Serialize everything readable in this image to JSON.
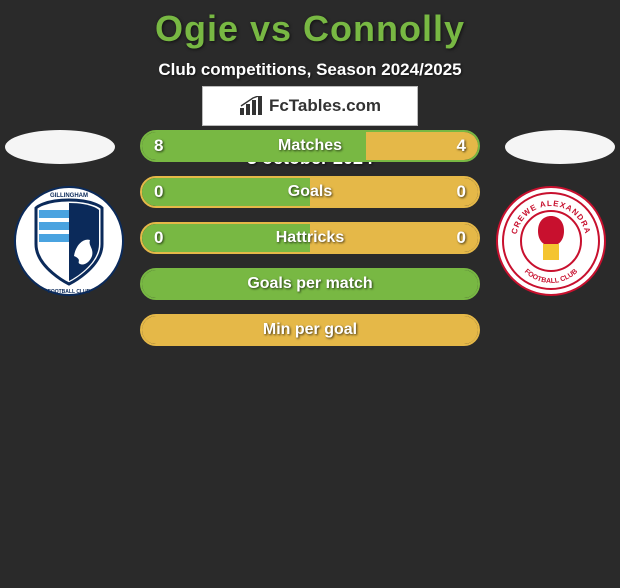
{
  "title": "Ogie vs Connolly",
  "title_color": "#78b843",
  "subtitle": "Club competitions, Season 2024/2025",
  "date": "3 october 2024",
  "background_color": "#2a2a2a",
  "ellipse_color": "#f5f5f5",
  "colors": {
    "left_fill": "#78b843",
    "right_fill": "#e5b848",
    "border_green": "#78b843",
    "border_amber": "#e5b848"
  },
  "players": {
    "left": {
      "name": "Ogie",
      "crest_name": "gillingham-crest"
    },
    "right": {
      "name": "Connolly",
      "crest_name": "crewe-alexandra-crest"
    }
  },
  "stats": [
    {
      "label": "Matches",
      "left_value": "8",
      "right_value": "4",
      "left_pct": 66.7,
      "right_pct": 33.3,
      "left_color": "#78b843",
      "right_color": "#e5b848",
      "border_color": "#78b843",
      "show_values": true
    },
    {
      "label": "Goals",
      "left_value": "0",
      "right_value": "0",
      "left_pct": 50,
      "right_pct": 50,
      "left_color": "#78b843",
      "right_color": "#e5b848",
      "border_color": "#e5b848",
      "show_values": true
    },
    {
      "label": "Hattricks",
      "left_value": "0",
      "right_value": "0",
      "left_pct": 50,
      "right_pct": 50,
      "left_color": "#78b843",
      "right_color": "#e5b848",
      "border_color": "#e5b848",
      "show_values": true
    },
    {
      "label": "Goals per match",
      "left_value": "",
      "right_value": "",
      "left_pct": 100,
      "right_pct": 0,
      "left_color": "#78b843",
      "right_color": "#e5b848",
      "border_color": "#78b843",
      "show_values": false
    },
    {
      "label": "Min per goal",
      "left_value": "",
      "right_value": "",
      "left_pct": 0,
      "right_pct": 100,
      "left_color": "#78b843",
      "right_color": "#e5b848",
      "border_color": "#e5b848",
      "show_values": false
    }
  ],
  "brand": {
    "text": "FcTables.com",
    "box_bg": "#ffffff",
    "box_border": "#bbbbbb",
    "icon_color": "#333333"
  },
  "typography": {
    "title_fontsize": 36,
    "subtitle_fontsize": 17,
    "stat_label_fontsize": 16,
    "stat_value_fontsize": 17,
    "date_fontsize": 18,
    "font_family": "Arial"
  }
}
